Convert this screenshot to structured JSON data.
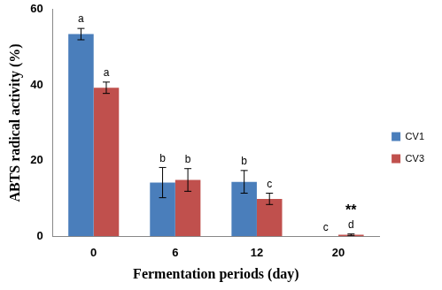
{
  "chart_data": {
    "type": "bar",
    "x_label": "Fermentation periods (day)",
    "y_label": "ABTS radical activity (%)",
    "categories": [
      "0",
      "6",
      "12",
      "20"
    ],
    "series": [
      {
        "name": "CV1",
        "color": "#4a7ebb",
        "values": [
          53.5,
          14.2,
          14.4,
          0
        ],
        "error": [
          1.5,
          4.0,
          3.0,
          0
        ],
        "letters": [
          "a",
          "b",
          "b",
          "c"
        ]
      },
      {
        "name": "CV3",
        "color": "#c0504d",
        "values": [
          39.3,
          14.9,
          9.9,
          0.4
        ],
        "error": [
          1.5,
          3.0,
          1.5,
          0.2
        ],
        "letters": [
          "a",
          "b",
          "c",
          "d"
        ]
      }
    ],
    "annotations": [
      {
        "text": "**",
        "category": "20",
        "series": "CV3"
      }
    ],
    "ylim": [
      0,
      60
    ],
    "yticks": [
      0,
      20,
      40,
      60
    ],
    "grid": false,
    "legend": "right"
  }
}
